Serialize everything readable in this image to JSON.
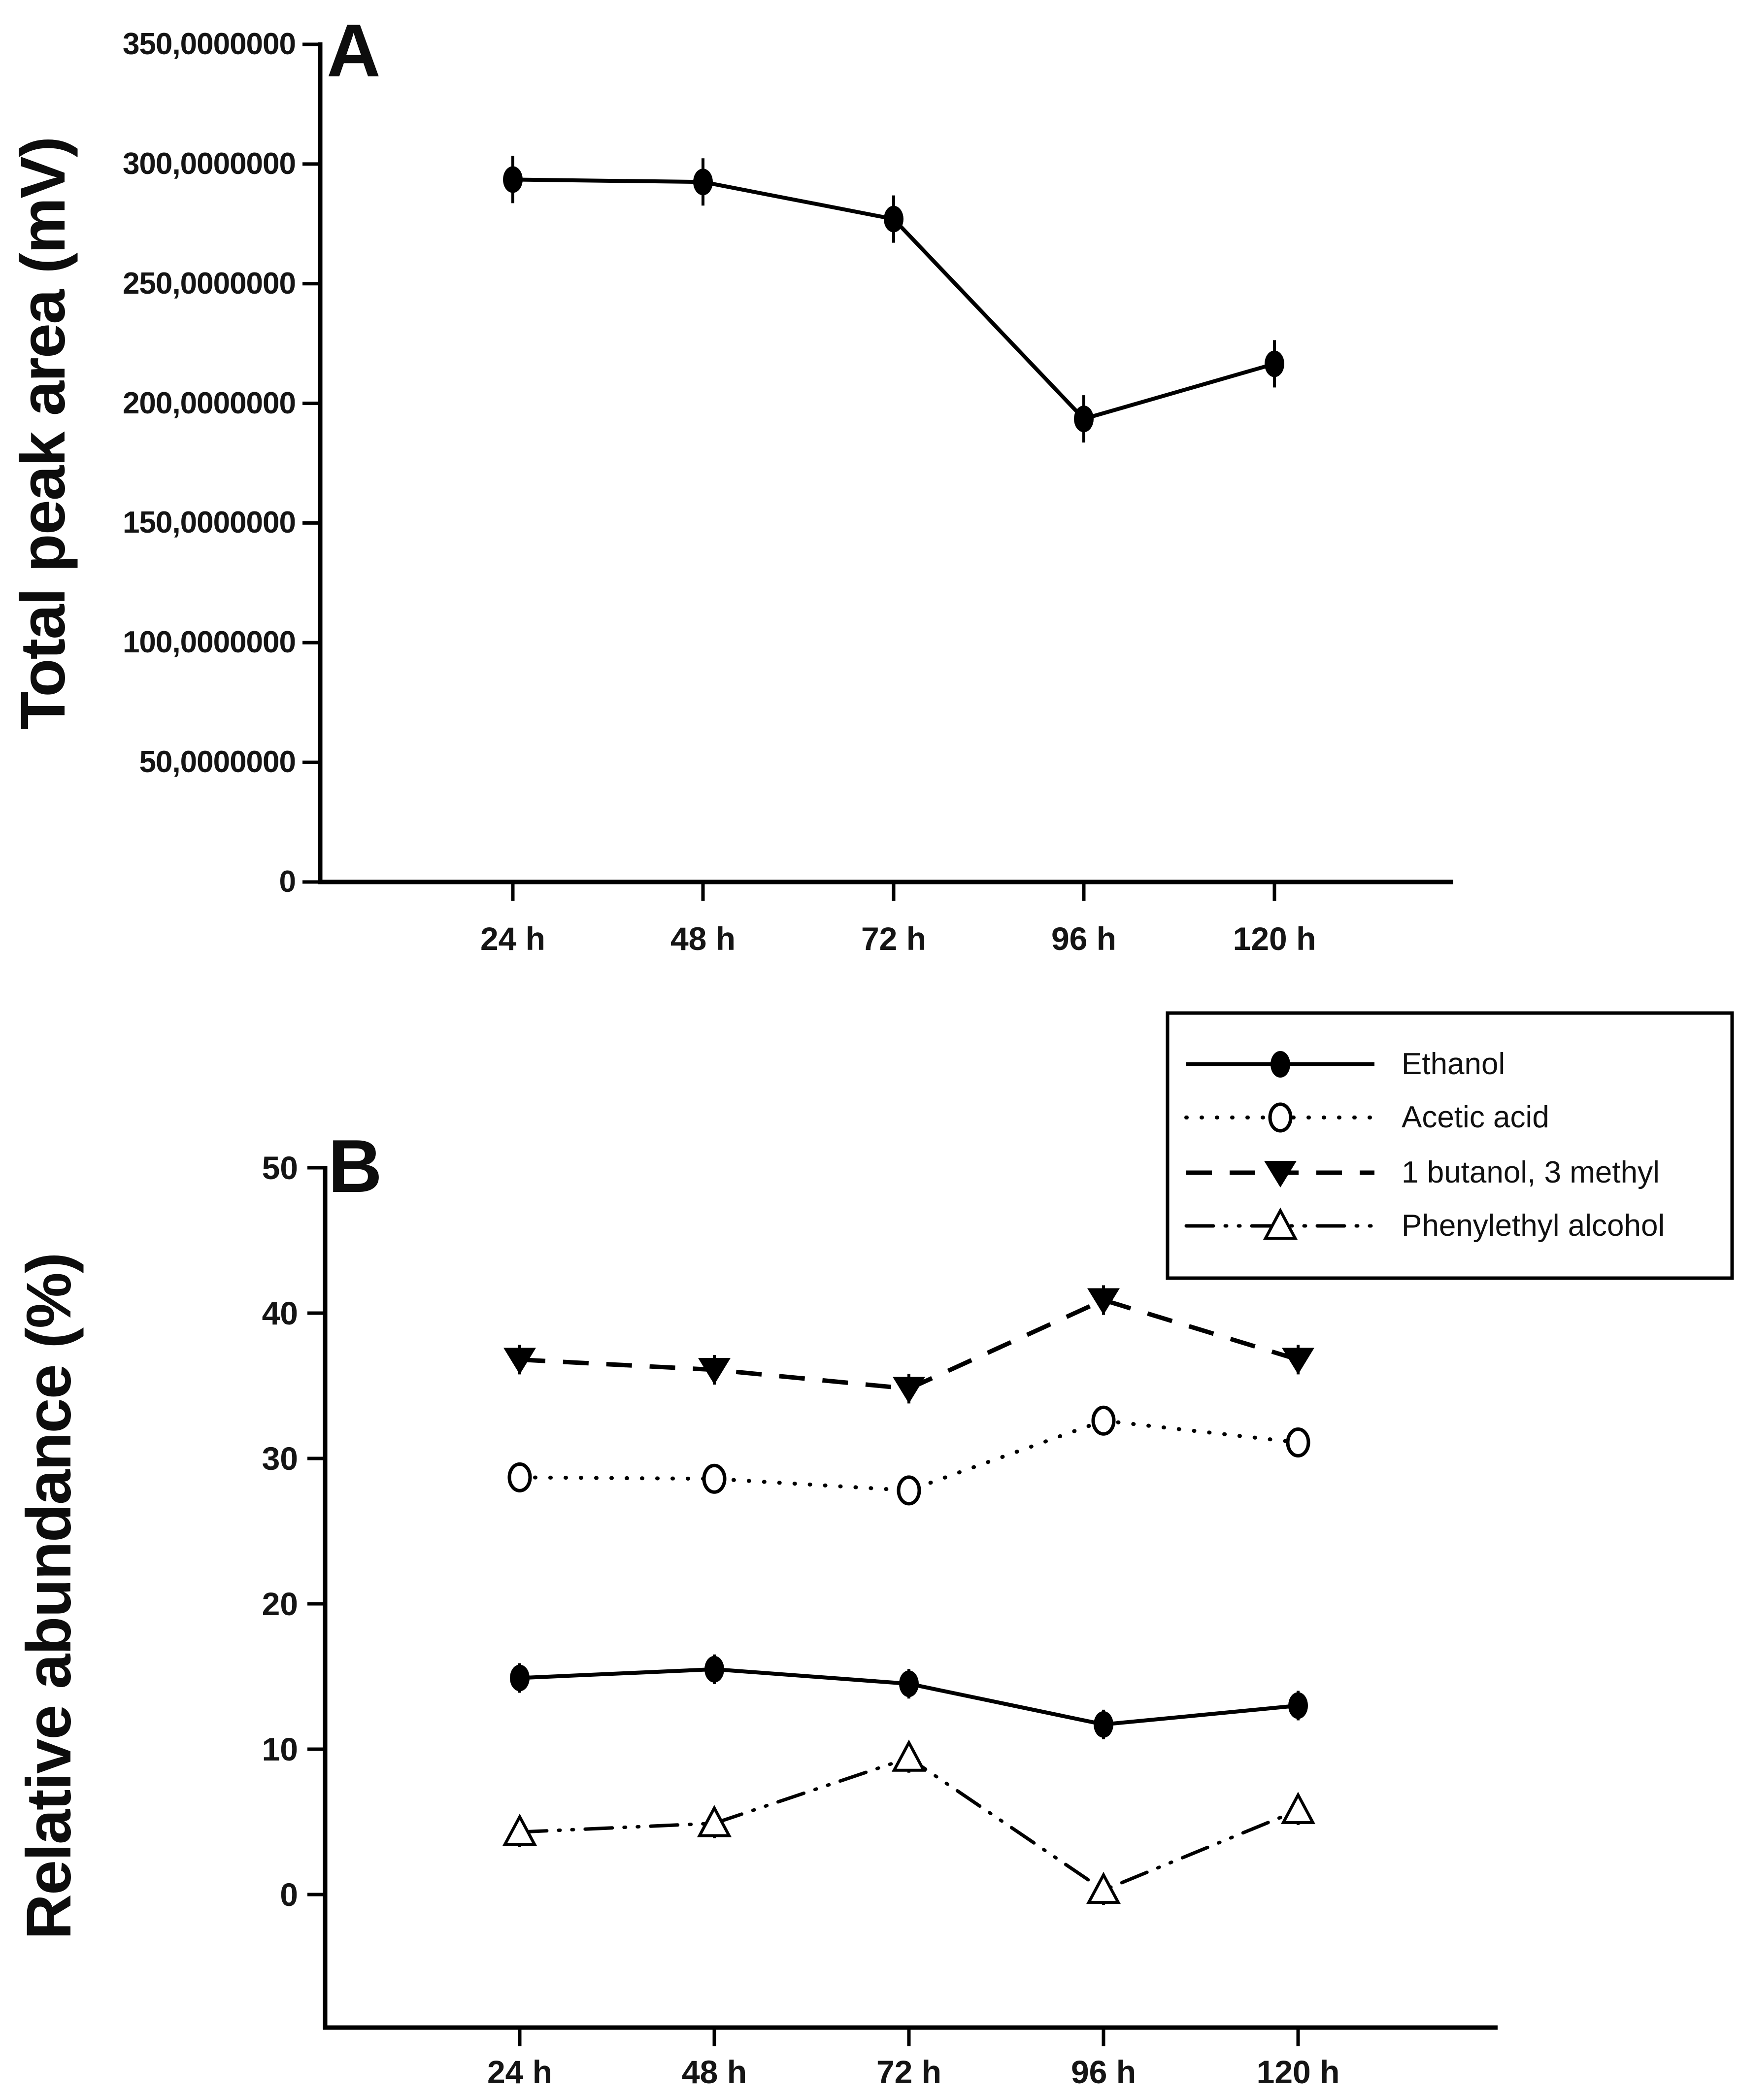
{
  "figure": {
    "background": "#ffffff",
    "ink": "#000000",
    "text_color": "#151515"
  },
  "chart_data": [
    {
      "panel_label": "A",
      "type": "line",
      "title": "",
      "xlabel": "",
      "ylabel": "Total peak area (mV)",
      "categories": [
        "24 h",
        "48 h",
        "72 h",
        "96 h",
        "120 h"
      ],
      "y_tick_labels": [
        "350,0000000",
        "300,0000000",
        "250,0000000",
        "200,0000000",
        "150,0000000",
        "100,0000000",
        "50,0000000",
        "0"
      ],
      "ylim": [
        0,
        350000000
      ],
      "grid": false,
      "legend": null,
      "series": [
        {
          "name": "Total peak area",
          "marker": "filled-circle",
          "linestyle": "solid",
          "values": [
            293500000,
            292500000,
            277000000,
            193500000,
            216500000
          ]
        }
      ]
    },
    {
      "panel_label": "B",
      "type": "line",
      "title": "",
      "xlabel": "",
      "ylabel": "Relative abundance (%)",
      "categories": [
        "24 h",
        "48 h",
        "72 h",
        "96 h",
        "120 h"
      ],
      "y_tick_labels": [
        "50",
        "40",
        "30",
        "20",
        "10",
        "0"
      ],
      "y_ticks": [
        50,
        40,
        30,
        20,
        10,
        0
      ],
      "ylim": [
        -9,
        50
      ],
      "grid": false,
      "legend": {
        "position": "top-right",
        "entries": [
          "Ethanol",
          "Acetic acid",
          "1 butanol, 3 methyl",
          "Phenylethyl alcohol"
        ]
      },
      "series": [
        {
          "name": "Ethanol",
          "marker": "filled-circle",
          "linestyle": "solid",
          "values": [
            14.9,
            15.5,
            14.5,
            11.7,
            13.0
          ]
        },
        {
          "name": "Acetic acid",
          "marker": "open-circle",
          "linestyle": "dotted",
          "values": [
            28.7,
            28.6,
            27.8,
            32.6,
            31.1
          ]
        },
        {
          "name": "1 butanol, 3 methyl",
          "marker": "filled-triangle-down",
          "linestyle": "dashed",
          "values": [
            36.8,
            36.1,
            34.8,
            40.9,
            36.8
          ]
        },
        {
          "name": "Phenylethyl alcohol",
          "marker": "open-triangle-up",
          "linestyle": "dash-dot-dot",
          "values": [
            4.3,
            4.9,
            9.4,
            0.3,
            5.8
          ]
        }
      ]
    }
  ]
}
